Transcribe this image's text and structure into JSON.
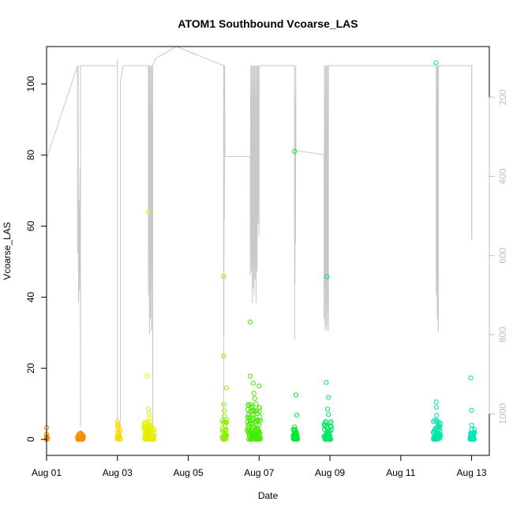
{
  "chart_data": {
    "type": "scatter",
    "title": "ATOM1 Southbound Vcoarse_LAS",
    "xlabel": "Date",
    "ylabel": "Vcoarse_LAS",
    "x_unit": "date",
    "xlim": [
      "2016-08-01T00:00",
      "2016-08-13T12:00"
    ],
    "ylim": [
      -4.5,
      110.5
    ],
    "x_ticks": [
      {
        "date": "2016-08-01T00:00",
        "label": "Aug 01"
      },
      {
        "date": "2016-08-03T00:00",
        "label": "Aug 03"
      },
      {
        "date": "2016-08-05T00:00",
        "label": "Aug 05"
      },
      {
        "date": "2016-08-07T00:00",
        "label": "Aug 07"
      },
      {
        "date": "2016-08-09T00:00",
        "label": "Aug 09"
      },
      {
        "date": "2016-08-11T00:00",
        "label": "Aug 11"
      },
      {
        "date": "2016-08-13T00:00",
        "label": "Aug 13"
      }
    ],
    "y_ticks": [
      0,
      20,
      40,
      60,
      80,
      100
    ],
    "right_axis": {
      "reversed": true,
      "ylim": [
        1105,
        72
      ],
      "ticks": [
        200,
        400,
        600,
        800,
        1000
      ],
      "color": "#bebebe"
    },
    "grid": false,
    "legend": "none",
    "point_series": [
      {
        "color": "#ff8c00",
        "points": [
          [
            "2016-08-01T00:00",
            3.3
          ],
          [
            "2016-08-01T00:00",
            1.5
          ],
          [
            "2016-08-01T00:00",
            0.8
          ],
          [
            "2016-08-01T00:00",
            0.3
          ],
          [
            "2016-08-01T00:00",
            0.0
          ],
          [
            "2016-08-01T23:00",
            1.8
          ],
          [
            "2016-08-01T23:30",
            1.2
          ],
          [
            "2016-08-01T23:50",
            0.6
          ],
          [
            "2016-08-02T00:10",
            0.2
          ],
          [
            "2016-08-02T00:30",
            0.0
          ],
          [
            "2016-08-02T00:50",
            0.9
          ],
          [
            "2016-08-01T22:30",
            0.4
          ]
        ]
      },
      {
        "color": "#ffd700",
        "points": [
          [
            "2016-08-03T00:00",
            5.0
          ],
          [
            "2016-08-03T00:05",
            3.8
          ],
          [
            "2016-08-03T00:10",
            2.5
          ],
          [
            "2016-08-03T00:15",
            1.4
          ],
          [
            "2016-08-03T00:20",
            0.6
          ],
          [
            "2016-08-03T00:25",
            0.1
          ],
          [
            "2016-08-03T00:30",
            4.2
          ]
        ]
      },
      {
        "color": "#e6ee00",
        "points": [
          [
            "2016-08-03T20:00",
            17.8
          ],
          [
            "2016-08-03T21:00",
            64.0
          ],
          [
            "2016-08-03T21:00",
            8.5
          ],
          [
            "2016-08-03T21:30",
            7.2
          ],
          [
            "2016-08-03T21:45",
            6.0
          ],
          [
            "2016-08-03T22:00",
            5.0
          ],
          [
            "2016-08-03T22:10",
            4.0
          ],
          [
            "2016-08-03T22:20",
            3.0
          ],
          [
            "2016-08-03T22:30",
            2.0
          ],
          [
            "2016-08-03T22:40",
            1.0
          ],
          [
            "2016-08-03T22:50",
            0.3
          ],
          [
            "2016-08-03T20:30",
            2.5
          ],
          [
            "2016-08-03T20:45",
            1.2
          ],
          [
            "2016-08-03T21:15",
            0.5
          ],
          [
            "2016-08-03T23:00",
            0.0
          ]
        ]
      },
      {
        "color": "#8cf000",
        "points": [
          [
            "2016-08-06T00:00",
            45.8
          ],
          [
            "2016-08-06T00:00",
            23.5
          ],
          [
            "2016-08-06T02:00",
            14.5
          ],
          [
            "2016-08-06T00:10",
            9.8
          ],
          [
            "2016-08-06T00:20",
            8.0
          ],
          [
            "2016-08-06T00:30",
            6.5
          ],
          [
            "2016-08-06T00:40",
            5.0
          ],
          [
            "2016-08-06T00:50",
            3.8
          ],
          [
            "2016-08-06T01:00",
            2.5
          ],
          [
            "2016-08-06T01:10",
            1.5
          ],
          [
            "2016-08-06T01:20",
            0.6
          ],
          [
            "2016-08-06T01:30",
            0.1
          ]
        ]
      },
      {
        "color": "#46ec00",
        "points": [
          [
            "2016-08-06T18:00",
            33.0
          ],
          [
            "2016-08-06T18:00",
            17.8
          ],
          [
            "2016-08-06T20:00",
            15.8
          ],
          [
            "2016-08-07T00:00",
            15.0
          ],
          [
            "2016-08-06T20:30",
            13.0
          ],
          [
            "2016-08-06T21:00",
            11.5
          ],
          [
            "2016-08-06T22:00",
            10.0
          ],
          [
            "2016-08-06T18:30",
            9.0
          ],
          [
            "2016-08-06T19:00",
            8.0
          ],
          [
            "2016-08-06T19:30",
            7.0
          ],
          [
            "2016-08-06T20:00",
            6.0
          ],
          [
            "2016-08-06T21:30",
            5.0
          ],
          [
            "2016-08-06T22:30",
            4.0
          ],
          [
            "2016-08-06T23:00",
            3.0
          ],
          [
            "2016-08-06T23:30",
            2.0
          ],
          [
            "2016-08-06T17:30",
            1.0
          ],
          [
            "2016-08-06T19:15",
            0.4
          ],
          [
            "2016-08-07T00:00",
            0.0
          ]
        ]
      },
      {
        "color": "#00e832",
        "points": [
          [
            "2016-08-08T00:00",
            81.0
          ],
          [
            "2016-08-08T01:00",
            12.5
          ],
          [
            "2016-08-08T01:30",
            6.8
          ],
          [
            "2016-08-08T00:00",
            3.5
          ],
          [
            "2016-08-08T00:20",
            2.5
          ],
          [
            "2016-08-08T00:40",
            1.5
          ],
          [
            "2016-08-08T01:00",
            0.6
          ],
          [
            "2016-08-08T01:20",
            0.0
          ]
        ]
      },
      {
        "color": "#00e864",
        "points": [
          [
            "2016-08-08T22:00",
            45.8
          ],
          [
            "2016-08-08T21:30",
            16.0
          ],
          [
            "2016-08-08T23:00",
            11.8
          ],
          [
            "2016-08-08T22:30",
            8.5
          ],
          [
            "2016-08-08T23:00",
            7.0
          ],
          [
            "2016-08-08T21:00",
            5.0
          ],
          [
            "2016-08-08T21:40",
            3.5
          ],
          [
            "2016-08-08T22:10",
            2.2
          ],
          [
            "2016-08-08T22:40",
            1.2
          ],
          [
            "2016-08-08T23:10",
            0.4
          ],
          [
            "2016-08-08T23:30",
            0.0
          ]
        ]
      },
      {
        "color": "#00e6aa",
        "points": [
          [
            "2016-08-12T00:00",
            106.0
          ],
          [
            "2016-08-12T00:00",
            10.5
          ],
          [
            "2016-08-12T00:10",
            9.0
          ],
          [
            "2016-08-12T00:20",
            6.8
          ],
          [
            "2016-08-12T00:30",
            5.0
          ],
          [
            "2016-08-12T00:40",
            3.5
          ],
          [
            "2016-08-12T00:50",
            2.5
          ],
          [
            "2016-08-12T01:00",
            1.5
          ],
          [
            "2016-08-12T02:00",
            3.8
          ],
          [
            "2016-08-12T01:30",
            0.6
          ],
          [
            "2016-08-11T23:30",
            0.0
          ]
        ]
      },
      {
        "color": "#00e6b4",
        "points": [
          [
            "2016-08-12T23:30",
            17.3
          ],
          [
            "2016-08-13T00:00",
            8.2
          ],
          [
            "2016-08-13T00:00",
            4.0
          ],
          [
            "2016-08-13T00:10",
            2.8
          ],
          [
            "2016-08-13T00:20",
            1.6
          ],
          [
            "2016-08-13T00:30",
            0.7
          ],
          [
            "2016-08-13T00:40",
            0.0
          ]
        ]
      }
    ],
    "point_clusters": [
      {
        "color": "#ff8c00",
        "x_start": "2016-08-01T00:00",
        "x_end": "2016-08-01T00:30",
        "y_range": [
          0,
          0.8
        ]
      },
      {
        "color": "#ff8c00",
        "x_start": "2016-08-01T21:00",
        "x_end": "2016-08-02T01:00",
        "y_range": [
          0,
          1.6
        ]
      },
      {
        "color": "#ffd700",
        "x_start": "2016-08-03T00:00",
        "x_end": "2016-08-03T02:00",
        "y_range": [
          0,
          4.0
        ]
      },
      {
        "color": "#e6ee00",
        "x_start": "2016-08-03T18:00",
        "x_end": "2016-08-04T01:00",
        "y_range": [
          0,
          5.0
        ]
      },
      {
        "color": "#8cf000",
        "x_start": "2016-08-05T23:00",
        "x_end": "2016-08-06T02:00",
        "y_range": [
          0,
          6.0
        ]
      },
      {
        "color": "#46ec00",
        "x_start": "2016-08-06T16:00",
        "x_end": "2016-08-07T01:00",
        "y_range": [
          0,
          10.0
        ]
      },
      {
        "color": "#00e832",
        "x_start": "2016-08-07T23:00",
        "x_end": "2016-08-08T02:00",
        "y_range": [
          0,
          3.0
        ]
      },
      {
        "color": "#00e864",
        "x_start": "2016-08-08T20:00",
        "x_end": "2016-08-09T01:00",
        "y_range": [
          0,
          5.0
        ]
      },
      {
        "color": "#00e6aa",
        "x_start": "2016-08-11T22:00",
        "x_end": "2016-08-12T03:00",
        "y_range": [
          0,
          6.0
        ]
      },
      {
        "color": "#00e6b4",
        "x_start": "2016-08-12T23:00",
        "x_end": "2016-08-13T02:00",
        "y_range": [
          0,
          3.0
        ]
      }
    ],
    "line_series": {
      "color": "#c8c8c8",
      "axis": "right",
      "points": [
        [
          "2016-08-01T00:00",
          1033
        ],
        [
          "2016-08-01T00:00",
          355
        ],
        [
          "2016-08-01T21:00",
          120
        ],
        [
          "2016-08-01T21:00",
          595
        ],
        [
          "2016-08-01T21:20",
          120
        ],
        [
          "2016-08-01T21:40",
          720
        ],
        [
          "2016-08-01T22:00",
          460
        ],
        [
          "2016-08-01T22:20",
          690
        ],
        [
          "2016-08-01T22:40",
          380
        ],
        [
          "2016-08-01T23:00",
          1033
        ],
        [
          "2016-08-01T23:00",
          120
        ],
        [
          "2016-08-03T00:00",
          120
        ],
        [
          "2016-08-03T00:00",
          850
        ],
        [
          "2016-08-03T00:00",
          105
        ],
        [
          "2016-08-03T00:00",
          1033
        ],
        [
          "2016-08-03T01:00",
          1042
        ],
        [
          "2016-08-03T01:00",
          1033
        ],
        [
          "2016-08-03T02:00",
          1018
        ],
        [
          "2016-08-03T02:00",
          160
        ],
        [
          "2016-08-03T04:00",
          120
        ],
        [
          "2016-08-03T21:00",
          120
        ],
        [
          "2016-08-03T21:00",
          700
        ],
        [
          "2016-08-03T21:20",
          120
        ],
        [
          "2016-08-03T21:40",
          800
        ],
        [
          "2016-08-03T22:00",
          120
        ],
        [
          "2016-08-03T22:20",
          760
        ],
        [
          "2016-08-03T22:40",
          120
        ],
        [
          "2016-08-03T23:00",
          790
        ],
        [
          "2016-08-03T23:20",
          120
        ],
        [
          "2016-08-04T00:00",
          1033
        ],
        [
          "2016-08-04T00:00",
          120
        ],
        [
          "2016-08-04T02:00",
          102
        ],
        [
          "2016-08-04T16:00",
          72
        ],
        [
          "2016-08-06T00:00",
          120
        ],
        [
          "2016-08-06T00:00",
          1033
        ],
        [
          "2016-08-06T00:00",
          350
        ],
        [
          "2016-08-06T00:10",
          810
        ],
        [
          "2016-08-06T00:20",
          120
        ],
        [
          "2016-08-06T00:30",
          510
        ],
        [
          "2016-08-06T00:40",
          120
        ],
        [
          "2016-08-06T00:50",
          350
        ],
        [
          "2016-08-06T18:00",
          350
        ],
        [
          "2016-08-06T18:00",
          650
        ],
        [
          "2016-08-06T18:20",
          120
        ],
        [
          "2016-08-06T18:40",
          640
        ],
        [
          "2016-08-06T19:00",
          120
        ],
        [
          "2016-08-06T19:20",
          720
        ],
        [
          "2016-08-06T19:40",
          120
        ],
        [
          "2016-08-06T20:00",
          680
        ],
        [
          "2016-08-06T20:20",
          120
        ],
        [
          "2016-08-06T20:40",
          700
        ],
        [
          "2016-08-06T21:00",
          120
        ],
        [
          "2016-08-06T21:20",
          660
        ],
        [
          "2016-08-06T21:40",
          120
        ],
        [
          "2016-08-06T22:00",
          720
        ],
        [
          "2016-08-06T22:20",
          120
        ],
        [
          "2016-08-06T22:40",
          640
        ],
        [
          "2016-08-06T23:00",
          120
        ],
        [
          "2016-08-06T23:20",
          520
        ],
        [
          "2016-08-06T23:40",
          120
        ],
        [
          "2016-08-07T00:00",
          550
        ],
        [
          "2016-08-07T00:00",
          120
        ],
        [
          "2016-08-08T00:00",
          120
        ],
        [
          "2016-08-08T00:00",
          813
        ],
        [
          "2016-08-08T00:10",
          200
        ],
        [
          "2016-08-08T00:20",
          670
        ],
        [
          "2016-08-08T00:30",
          220
        ],
        [
          "2016-08-08T00:40",
          570
        ],
        [
          "2016-08-08T00:50",
          120
        ],
        [
          "2016-08-08T01:00",
          335
        ],
        [
          "2016-08-08T20:00",
          345
        ],
        [
          "2016-08-08T20:00",
          760
        ],
        [
          "2016-08-08T20:20",
          120
        ],
        [
          "2016-08-08T20:40",
          790
        ],
        [
          "2016-08-08T21:00",
          120
        ],
        [
          "2016-08-08T21:20",
          780
        ],
        [
          "2016-08-08T21:40",
          120
        ],
        [
          "2016-08-08T22:00",
          790
        ],
        [
          "2016-08-08T22:20",
          120
        ],
        [
          "2016-08-08T22:40",
          720
        ],
        [
          "2016-08-08T23:00",
          790
        ],
        [
          "2016-08-08T23:00",
          120
        ],
        [
          "2016-08-12T00:00",
          120
        ],
        [
          "2016-08-12T00:00",
          700
        ],
        [
          "2016-08-12T00:20",
          120
        ],
        [
          "2016-08-12T00:40",
          760
        ],
        [
          "2016-08-12T01:00",
          120
        ],
        [
          "2016-08-12T01:20",
          790
        ],
        [
          "2016-08-12T01:30",
          790
        ],
        [
          "2016-08-12T01:30",
          120
        ],
        [
          "2016-08-13T00:00",
          120
        ],
        [
          "2016-08-13T00:00",
          560
        ],
        [
          "2016-08-13T00:10",
          560
        ],
        [
          "2016-08-13T00:10",
          120
        ]
      ]
    }
  }
}
